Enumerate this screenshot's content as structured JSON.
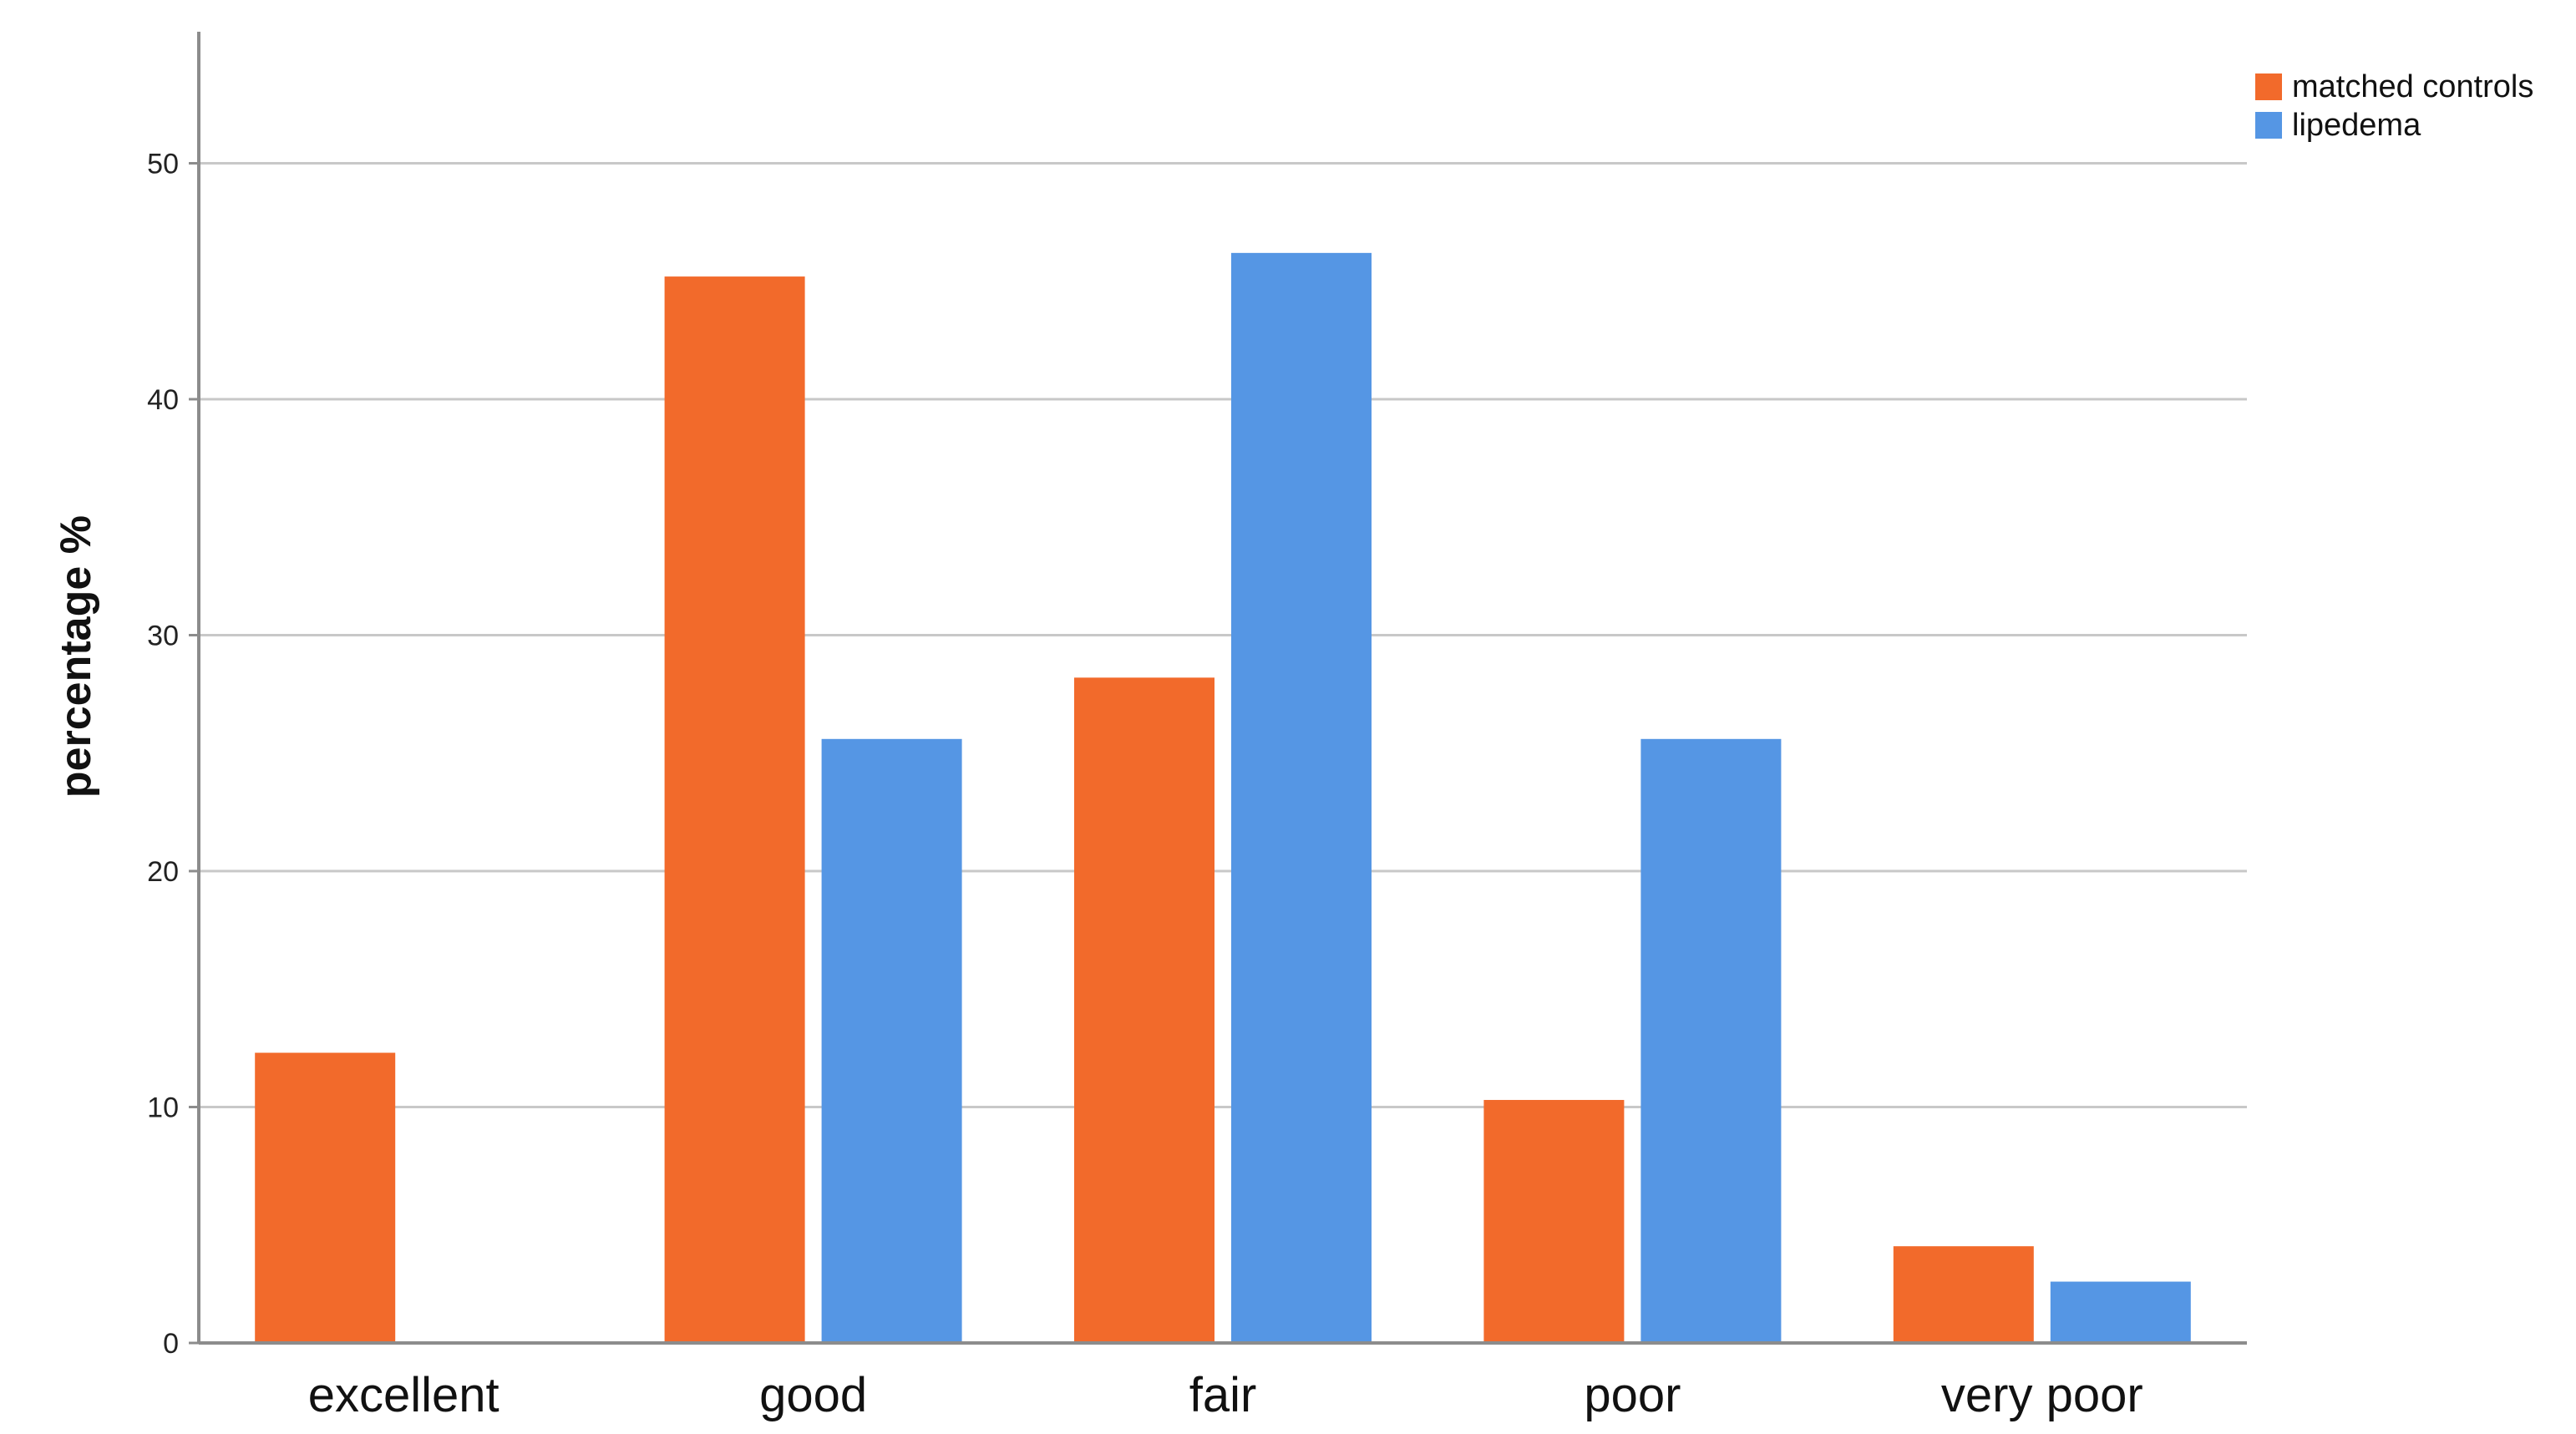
{
  "chart_data": {
    "type": "bar",
    "categories": [
      "excellent",
      "good",
      "fair",
      "poor",
      "very poor"
    ],
    "series": [
      {
        "name": "matched controls",
        "color": "#f26a2b",
        "values": [
          12.3,
          45.2,
          28.2,
          10.3,
          4.1
        ]
      },
      {
        "name": "lipedema",
        "color": "#5596e4",
        "values": [
          0,
          25.6,
          46.2,
          25.6,
          2.6
        ]
      }
    ],
    "title": "",
    "xlabel": "",
    "ylabel": "percentage %",
    "ylim": [
      0,
      55
    ],
    "yticks": [
      0,
      10,
      20,
      30,
      40,
      50
    ],
    "grid": true,
    "legend_position": "top-right"
  }
}
